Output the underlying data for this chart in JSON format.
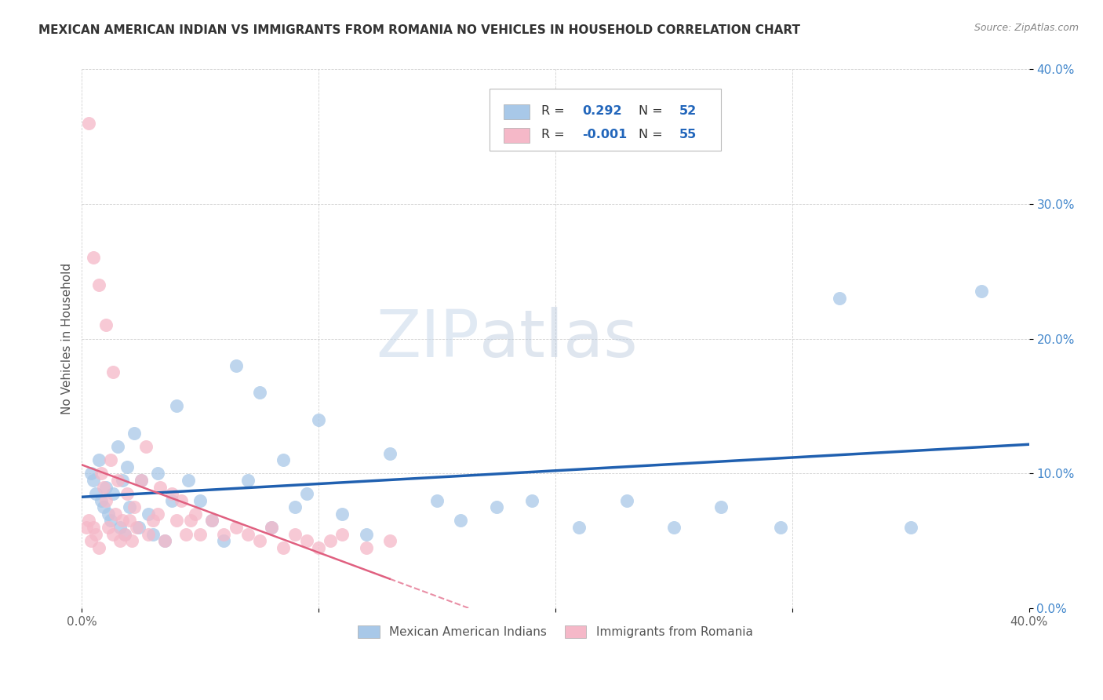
{
  "title": "MEXICAN AMERICAN INDIAN VS IMMIGRANTS FROM ROMANIA NO VEHICLES IN HOUSEHOLD CORRELATION CHART",
  "source": "Source: ZipAtlas.com",
  "ylabel": "No Vehicles in Household",
  "xlim": [
    0.0,
    0.4
  ],
  "ylim": [
    0.0,
    0.4
  ],
  "xtick_vals": [
    0.0,
    0.1,
    0.2,
    0.3,
    0.4
  ],
  "xtick_labels": [
    "0.0%",
    "",
    "",
    "",
    "40.0%"
  ],
  "ytick_vals": [
    0.0,
    0.1,
    0.2,
    0.3,
    0.4
  ],
  "ytick_labels_right": [
    "0.0%",
    "10.0%",
    "20.0%",
    "30.0%",
    "40.0%"
  ],
  "blue_R": "0.292",
  "blue_N": "52",
  "pink_R": "-0.001",
  "pink_N": "55",
  "blue_color": "#a8c8e8",
  "pink_color": "#f5b8c8",
  "blue_line_color": "#2060b0",
  "pink_line_color": "#e06080",
  "watermark_zip": "ZIP",
  "watermark_atlas": "atlas",
  "legend_label_blue": "Mexican American Indians",
  "legend_label_pink": "Immigrants from Romania",
  "blue_x": [
    0.004,
    0.005,
    0.006,
    0.007,
    0.008,
    0.009,
    0.01,
    0.011,
    0.012,
    0.013,
    0.015,
    0.016,
    0.017,
    0.018,
    0.019,
    0.02,
    0.022,
    0.024,
    0.025,
    0.028,
    0.03,
    0.032,
    0.035,
    0.038,
    0.04,
    0.045,
    0.05,
    0.055,
    0.06,
    0.065,
    0.07,
    0.075,
    0.08,
    0.085,
    0.09,
    0.095,
    0.1,
    0.11,
    0.12,
    0.13,
    0.15,
    0.16,
    0.175,
    0.19,
    0.21,
    0.23,
    0.25,
    0.27,
    0.295,
    0.32,
    0.35,
    0.38
  ],
  "blue_y": [
    0.1,
    0.095,
    0.085,
    0.11,
    0.08,
    0.075,
    0.09,
    0.07,
    0.065,
    0.085,
    0.12,
    0.06,
    0.095,
    0.055,
    0.105,
    0.075,
    0.13,
    0.06,
    0.095,
    0.07,
    0.055,
    0.1,
    0.05,
    0.08,
    0.15,
    0.095,
    0.08,
    0.065,
    0.05,
    0.18,
    0.095,
    0.16,
    0.06,
    0.11,
    0.075,
    0.085,
    0.14,
    0.07,
    0.055,
    0.115,
    0.08,
    0.065,
    0.075,
    0.08,
    0.06,
    0.08,
    0.06,
    0.075,
    0.06,
    0.23,
    0.06,
    0.235
  ],
  "pink_x": [
    0.002,
    0.003,
    0.004,
    0.005,
    0.006,
    0.007,
    0.008,
    0.009,
    0.01,
    0.011,
    0.012,
    0.013,
    0.014,
    0.015,
    0.016,
    0.017,
    0.018,
    0.019,
    0.02,
    0.021,
    0.022,
    0.023,
    0.025,
    0.027,
    0.028,
    0.03,
    0.032,
    0.033,
    0.035,
    0.038,
    0.04,
    0.042,
    0.044,
    0.046,
    0.048,
    0.05,
    0.055,
    0.06,
    0.065,
    0.07,
    0.075,
    0.08,
    0.085,
    0.09,
    0.095,
    0.1,
    0.105,
    0.11,
    0.12,
    0.13,
    0.003,
    0.005,
    0.007,
    0.01,
    0.013
  ],
  "pink_y": [
    0.06,
    0.065,
    0.05,
    0.06,
    0.055,
    0.045,
    0.1,
    0.09,
    0.08,
    0.06,
    0.11,
    0.055,
    0.07,
    0.095,
    0.05,
    0.065,
    0.055,
    0.085,
    0.065,
    0.05,
    0.075,
    0.06,
    0.095,
    0.12,
    0.055,
    0.065,
    0.07,
    0.09,
    0.05,
    0.085,
    0.065,
    0.08,
    0.055,
    0.065,
    0.07,
    0.055,
    0.065,
    0.055,
    0.06,
    0.055,
    0.05,
    0.06,
    0.045,
    0.055,
    0.05,
    0.045,
    0.05,
    0.055,
    0.045,
    0.05,
    0.36,
    0.26,
    0.24,
    0.21,
    0.175
  ]
}
